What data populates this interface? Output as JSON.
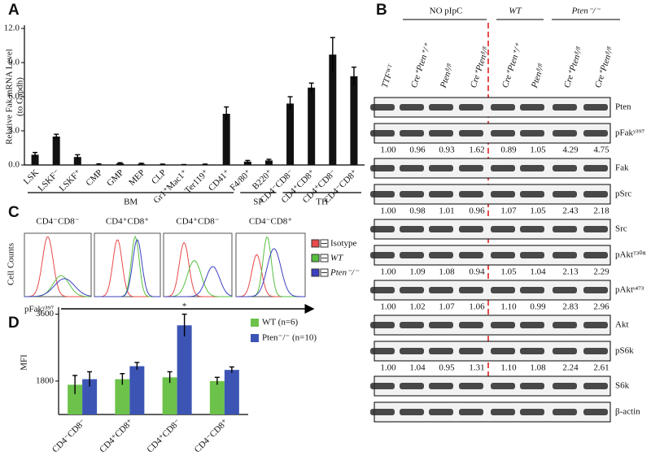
{
  "panel_labels": [
    "A",
    "B",
    "C",
    "D"
  ],
  "chart_data": [
    {
      "type": "bar",
      "ylabel": [
        "Relative Fak mRNA Level",
        "(to Gapdh)"
      ],
      "categories": [
        "LSK",
        "LSKF⁻",
        "LSKF⁺",
        "CMP",
        "GMP",
        "MEP",
        "CLP",
        "Gr1⁺Mac1⁺",
        "Ter119⁺",
        "CD41⁺",
        "F4/80⁺",
        "B220⁺",
        "CD4⁻CD8⁻",
        "CD4⁺CD8⁺",
        "CD4⁺CD8⁻",
        "CD4⁻CD8⁺"
      ],
      "values": [
        0.9,
        2.5,
        0.7,
        0.05,
        0.15,
        0.1,
        0.05,
        0.02,
        0.05,
        4.5,
        0.3,
        0.4,
        5.4,
        6.8,
        9.7,
        7.8
      ],
      "errors": [
        0.2,
        0.2,
        0.2,
        0.05,
        0.05,
        0.05,
        0.03,
        0.02,
        0.03,
        0.6,
        0.1,
        0.1,
        0.6,
        0.4,
        1.5,
        0.8
      ],
      "color": "#111111",
      "groups": [
        "BM",
        "SP",
        "TH"
      ],
      "ylim": [
        0,
        12
      ],
      "yticks": [
        {
          "value": 0,
          "label": "0.0"
        },
        {
          "value": 3,
          "label": "3.0"
        },
        {
          "value": 6,
          "label": "6.0"
        },
        {
          "value": 9,
          "label": "9.0"
        },
        {
          "value": 12,
          "label": "12.0"
        }
      ]
    },
    {
      "type": "bar",
      "ylabel": [
        "MFI"
      ],
      "categories": [
        "CD4⁻CD8⁻",
        "CD4⁺CD8⁺",
        "CD4⁺CD8⁻",
        "CD4⁻CD8⁺"
      ],
      "series": [
        {
          "name": "WT (n=6)",
          "color": "#6cc24a",
          "values": [
            1700,
            1850,
            1900,
            1800
          ],
          "errors": [
            250,
            150,
            150,
            100
          ]
        },
        {
          "name": "Pten⁻/⁻ (n=10)",
          "color": "#3c55b4",
          "values": [
            1850,
            2200,
            3300,
            2100
          ],
          "errors": [
            200,
            100,
            300,
            80
          ]
        }
      ],
      "annotation": "*",
      "ylim": [
        900,
        3700
      ],
      "yticks": [
        1800,
        3600
      ]
    }
  ],
  "blot": {
    "header_groups": [
      "NO pIpC",
      "WT",
      "Pten⁻/⁻"
    ],
    "lanes": [
      "TTFᵂᵀ",
      "Cre⁺Pten⁺/⁺",
      "Ptenᶠˡ/ᶠˡ",
      "Cre⁺Ptenᶠˡ/ᶠˡ",
      "Cre⁺Pten⁺/⁺",
      "Ptenᶠˡ/ᶠˡ",
      "Cre⁺Ptenᶠˡ/ᶠˡ",
      "Cre⁺Ptenᶠˡ/ᶠˡ"
    ],
    "rows": [
      {
        "label": "Pten"
      },
      {
        "label": "pFakʸ³⁹⁷",
        "quant": [
          "1.00",
          "0.96",
          "0.93",
          "1.62",
          "0.89",
          "1.05",
          "4.29",
          "4.75"
        ]
      },
      {
        "label": "Fak"
      },
      {
        "label": "pSrc",
        "quant": [
          "1.00",
          "0.98",
          "1.01",
          "0.96",
          "1.07",
          "1.05",
          "2.43",
          "2.18"
        ]
      },
      {
        "label": "Src"
      },
      {
        "label": "pAktᵀ³⁰⁸",
        "quant": [
          "1.00",
          "1.09",
          "1.08",
          "0.94",
          "1.05",
          "1.04",
          "2.13",
          "2.29"
        ]
      },
      {
        "label": "pAktˢ⁴⁷³",
        "quant": [
          "1.00",
          "1.02",
          "1.07",
          "1.06",
          "1.10",
          "0.99",
          "2.83",
          "2.96"
        ]
      },
      {
        "label": "Akt"
      },
      {
        "label": "pS6k",
        "quant": [
          "1.00",
          "1.04",
          "0.95",
          "1.31",
          "1.10",
          "1.08",
          "2.24",
          "2.61"
        ]
      },
      {
        "label": "S6k"
      },
      {
        "label": "β-actin"
      }
    ]
  },
  "flow": {
    "populations": [
      "CD4⁻CD8⁻",
      "CD4⁺CD8⁺",
      "CD4⁺CD8⁻",
      "CD4⁻CD8⁺"
    ],
    "legend": [
      "Isotype",
      "WT",
      "Pten⁻/⁻"
    ],
    "ylabel": "Cell Counts",
    "xlabel": "pFakʸ³⁹⁷"
  }
}
